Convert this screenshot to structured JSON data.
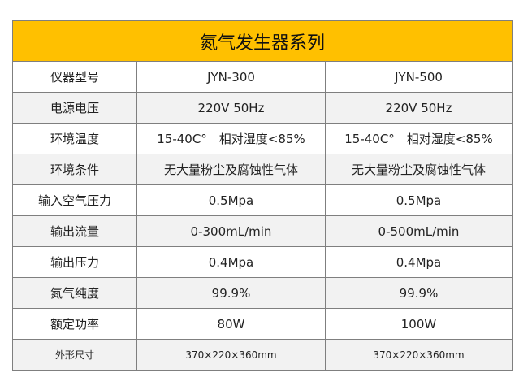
{
  "table": {
    "title": "氮气发生器系列",
    "rows": [
      [
        "仪器型号",
        "JYN-300",
        "JYN-500"
      ],
      [
        "电源电压",
        "220V 50Hz",
        "220V 50Hz"
      ],
      [
        "环境温度",
        "15-40C°　相对湿度<85%",
        "15-40C°　相对湿度<85%"
      ],
      [
        "环境条件",
        "无大量粉尘及腐蚀性气体",
        "无大量粉尘及腐蚀性气体"
      ],
      [
        "输入空气压力",
        "0.5Mpa",
        "0.5Mpa"
      ],
      [
        "输出流量",
        "0-300mL/min",
        "0-500mL/min"
      ],
      [
        "输出压力",
        "0.4Mpa",
        "0.4Mpa"
      ],
      [
        "氮气纯度",
        "99.9%",
        "99.9%"
      ],
      [
        "额定功率",
        "80W",
        "100W"
      ],
      [
        "外形尺寸",
        "370×220×360mm",
        "370×220×360mm"
      ]
    ]
  }
}
